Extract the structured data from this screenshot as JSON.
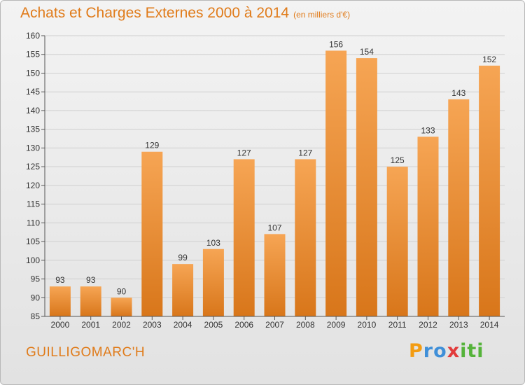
{
  "title": "Achats et Charges Externes 2000 à 2014",
  "unit": "(en milliers d'€)",
  "commune": "GUILLIGOMARC'H",
  "logo": {
    "letters": [
      "P",
      "r",
      "o",
      "x",
      "i",
      "t",
      "i"
    ],
    "colors": [
      "#f39c12",
      "#3f8fd8",
      "#3f8fd8",
      "#e23b3b",
      "#55b33a",
      "#55b33a",
      "#55b33a"
    ]
  },
  "colors": {
    "bar_light": "#f6a554",
    "bar_dark": "#d8761a",
    "title": "#e07b1a",
    "grid": "#cfcfcf"
  },
  "chart_data": {
    "type": "bar",
    "categories": [
      "2000",
      "2001",
      "2002",
      "2003",
      "2004",
      "2005",
      "2006",
      "2007",
      "2008",
      "2009",
      "2010",
      "2011",
      "2012",
      "2013",
      "2014"
    ],
    "values": [
      93,
      93,
      90,
      129,
      99,
      103,
      127,
      107,
      127,
      156,
      154,
      125,
      133,
      143,
      152
    ],
    "ylim": [
      85,
      160
    ],
    "yticks": [
      85,
      90,
      95,
      100,
      105,
      110,
      115,
      120,
      125,
      130,
      135,
      140,
      145,
      150,
      155,
      160
    ],
    "grid": true,
    "title": "Achats et Charges Externes 2000 à 2014",
    "xlabel": "",
    "ylabel": ""
  }
}
